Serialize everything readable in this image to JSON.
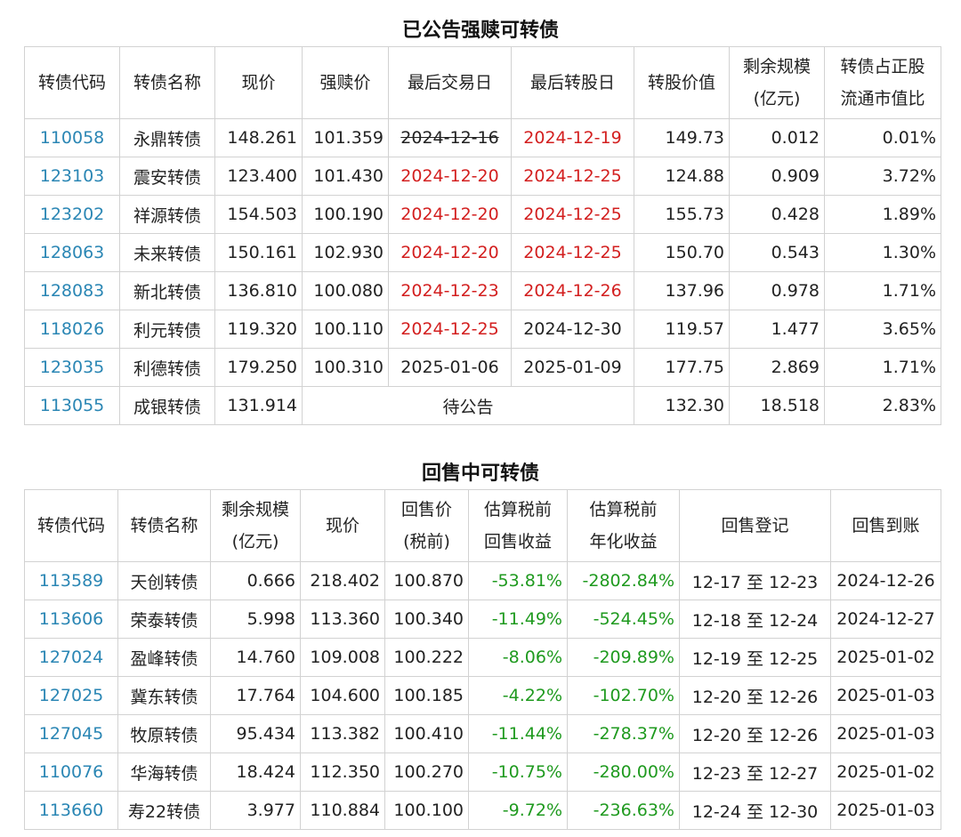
{
  "table1": {
    "title": "已公告强赎可转债",
    "headers": {
      "code": "转债代码",
      "name": "转债名称",
      "price": "现价",
      "redeem_price": "强赎价",
      "last_trade": "最后交易日",
      "last_convert": "最后转股日",
      "convert_value": "转股价值",
      "remaining_l1": "剩余规模",
      "remaining_l2": "(亿元)",
      "ratio_l1": "转债占正股",
      "ratio_l2": "流通市值比"
    },
    "rows": [
      {
        "code": "110058",
        "name": "永鼎转债",
        "price": "148.261",
        "redeem_price": "101.359",
        "last_trade": "2024-12-16",
        "last_convert": "2024-12-19",
        "convert_value": "149.73",
        "remaining": "0.012",
        "ratio": "0.01%"
      },
      {
        "code": "123103",
        "name": "震安转债",
        "price": "123.400",
        "redeem_price": "101.430",
        "last_trade": "2024-12-20",
        "last_convert": "2024-12-25",
        "convert_value": "124.88",
        "remaining": "0.909",
        "ratio": "3.72%"
      },
      {
        "code": "123202",
        "name": "祥源转债",
        "price": "154.503",
        "redeem_price": "100.190",
        "last_trade": "2024-12-20",
        "last_convert": "2024-12-25",
        "convert_value": "155.73",
        "remaining": "0.428",
        "ratio": "1.89%"
      },
      {
        "code": "128063",
        "name": "未来转债",
        "price": "150.161",
        "redeem_price": "102.930",
        "last_trade": "2024-12-20",
        "last_convert": "2024-12-25",
        "convert_value": "150.70",
        "remaining": "0.543",
        "ratio": "1.30%"
      },
      {
        "code": "128083",
        "name": "新北转债",
        "price": "136.810",
        "redeem_price": "100.080",
        "last_trade": "2024-12-23",
        "last_convert": "2024-12-26",
        "convert_value": "137.96",
        "remaining": "0.978",
        "ratio": "1.71%"
      },
      {
        "code": "118026",
        "name": "利元转债",
        "price": "119.320",
        "redeem_price": "100.110",
        "last_trade": "2024-12-25",
        "last_convert": "2024-12-30",
        "convert_value": "119.57",
        "remaining": "1.477",
        "ratio": "3.65%"
      },
      {
        "code": "123035",
        "name": "利德转债",
        "price": "179.250",
        "redeem_price": "100.310",
        "last_trade": "2025-01-06",
        "last_convert": "2025-01-09",
        "convert_value": "177.75",
        "remaining": "2.869",
        "ratio": "1.71%"
      },
      {
        "code": "113055",
        "name": "成银转债",
        "price": "131.914",
        "pending": "待公告",
        "convert_value": "132.30",
        "remaining": "18.518",
        "ratio": "2.83%"
      }
    ]
  },
  "table2": {
    "title": "回售中可转债",
    "headers": {
      "code": "转债代码",
      "name": "转债名称",
      "remaining_l1": "剩余规模",
      "remaining_l2": "(亿元)",
      "price": "现价",
      "putback_l1": "回售价",
      "putback_l2": "(税前)",
      "est_return_l1": "估算税前",
      "est_return_l2": "回售收益",
      "est_annual_l1": "估算税前",
      "est_annual_l2": "年化收益",
      "register": "回售登记",
      "payment": "回售到账"
    },
    "rows": [
      {
        "code": "113589",
        "name": "天创转债",
        "remaining": "0.666",
        "price": "218.402",
        "putback": "100.870",
        "est_return": "-53.81%",
        "est_annual": "-2802.84%",
        "register": "12-17 至 12-23",
        "payment": "2024-12-26"
      },
      {
        "code": "113606",
        "name": "荣泰转债",
        "remaining": "5.998",
        "price": "113.360",
        "putback": "100.340",
        "est_return": "-11.49%",
        "est_annual": "-524.45%",
        "register": "12-18 至 12-24",
        "payment": "2024-12-27"
      },
      {
        "code": "127024",
        "name": "盈峰转债",
        "remaining": "14.760",
        "price": "109.008",
        "putback": "100.222",
        "est_return": "-8.06%",
        "est_annual": "-209.89%",
        "register": "12-19 至 12-25",
        "payment": "2025-01-02"
      },
      {
        "code": "127025",
        "name": "冀东转债",
        "remaining": "17.764",
        "price": "104.600",
        "putback": "100.185",
        "est_return": "-4.22%",
        "est_annual": "-102.70%",
        "register": "12-20 至 12-26",
        "payment": "2025-01-03"
      },
      {
        "code": "127045",
        "name": "牧原转债",
        "remaining": "95.434",
        "price": "113.382",
        "putback": "100.410",
        "est_return": "-11.44%",
        "est_annual": "-278.37%",
        "register": "12-20 至 12-26",
        "payment": "2025-01-03"
      },
      {
        "code": "110076",
        "name": "华海转债",
        "remaining": "18.424",
        "price": "112.350",
        "putback": "100.270",
        "est_return": "-10.75%",
        "est_annual": "-280.00%",
        "register": "12-23 至 12-27",
        "payment": "2025-01-02"
      },
      {
        "code": "113660",
        "name": "寿22转债",
        "remaining": "3.977",
        "price": "110.884",
        "putback": "100.100",
        "est_return": "-9.72%",
        "est_annual": "-236.63%",
        "register": "12-24 至 12-30",
        "payment": "2025-01-03"
      }
    ]
  },
  "colors": {
    "code_link": "#2a86b4",
    "date_highlight": "#d31f1f",
    "negative_return": "#1f9a1f",
    "border": "#d2d2d2"
  }
}
